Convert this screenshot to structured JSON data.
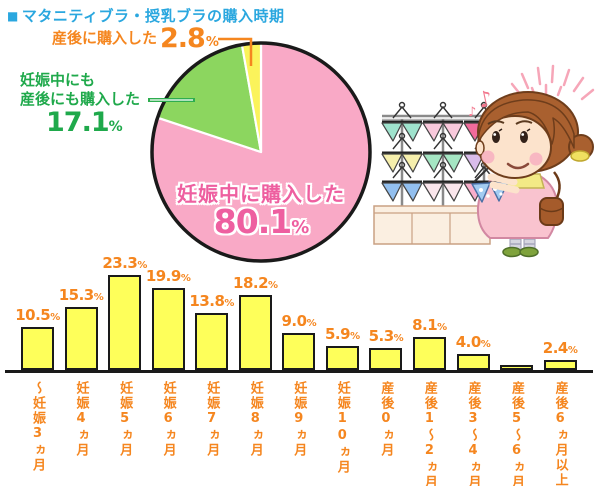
{
  "header": {
    "bullet": "■",
    "title": "マタニティブラ・授乳ブラの購入時期"
  },
  "colors": {
    "title_blue": "#2AA7DF",
    "orange": "#F5861F",
    "pink_text": "#EE5FA0",
    "green_text": "#1FA94B",
    "ink": "#1A1A1A",
    "pie_pink": "#F9A9C6",
    "pie_green": "#8CD65F",
    "pie_yellow": "#FBF35B",
    "bar_yellow": "#FEFF5A"
  },
  "pie_labels": {
    "postpartum": {
      "text": "産後に購入した",
      "value": "2.8",
      "unit": "%"
    },
    "both": {
      "line1": "妊娠中にも",
      "line2": "産後にも購入した",
      "value": "17.1",
      "unit": "%"
    },
    "during": {
      "text": "妊娠中に購入した",
      "value": "80.1",
      "unit": "%"
    }
  },
  "chart_data": [
    {
      "type": "pie",
      "title": "マタニティブラ・授乳ブラの購入時期",
      "unit": "%",
      "start_angle": "12-oclock",
      "direction": "clockwise",
      "slices": [
        {
          "label": "妊娠中に購入した",
          "value": 80.1,
          "color": "#F9A9C6"
        },
        {
          "label": "妊娠中にも産後にも購入した",
          "value": 17.1,
          "color": "#8CD65F"
        },
        {
          "label": "産後に購入した",
          "value": 2.8,
          "color": "#FBF35B"
        }
      ]
    },
    {
      "type": "bar",
      "title": "",
      "xlabel": "",
      "ylabel": "",
      "unit": "%",
      "ylim": [
        0,
        25
      ],
      "grid": false,
      "bar_color": "#FEFF5A",
      "label_color": "#F5861F",
      "categories": [
        "〜妊娠3ヵ月",
        "妊娠4ヵ月",
        "妊娠5ヵ月",
        "妊娠6ヵ月",
        "妊娠7ヵ月",
        "妊娠8ヵ月",
        "妊娠9ヵ月",
        "妊娠10ヵ月",
        "産後0ヵ月",
        "産後1〜2ヵ月",
        "産後3〜4ヵ月",
        "産後5〜6ヵ月",
        "産後6ヵ月以上"
      ],
      "values": [
        10.5,
        15.3,
        23.3,
        19.9,
        13.8,
        18.2,
        9.0,
        5.9,
        5.3,
        8.1,
        4.0,
        0.3,
        2.4
      ],
      "value_labels": [
        "10.5",
        "15.3",
        "23.3",
        "19.9",
        "13.8",
        "18.2",
        "9.0",
        "5.9",
        "5.3",
        "8.1",
        "4.0",
        "",
        "2.4"
      ]
    }
  ]
}
